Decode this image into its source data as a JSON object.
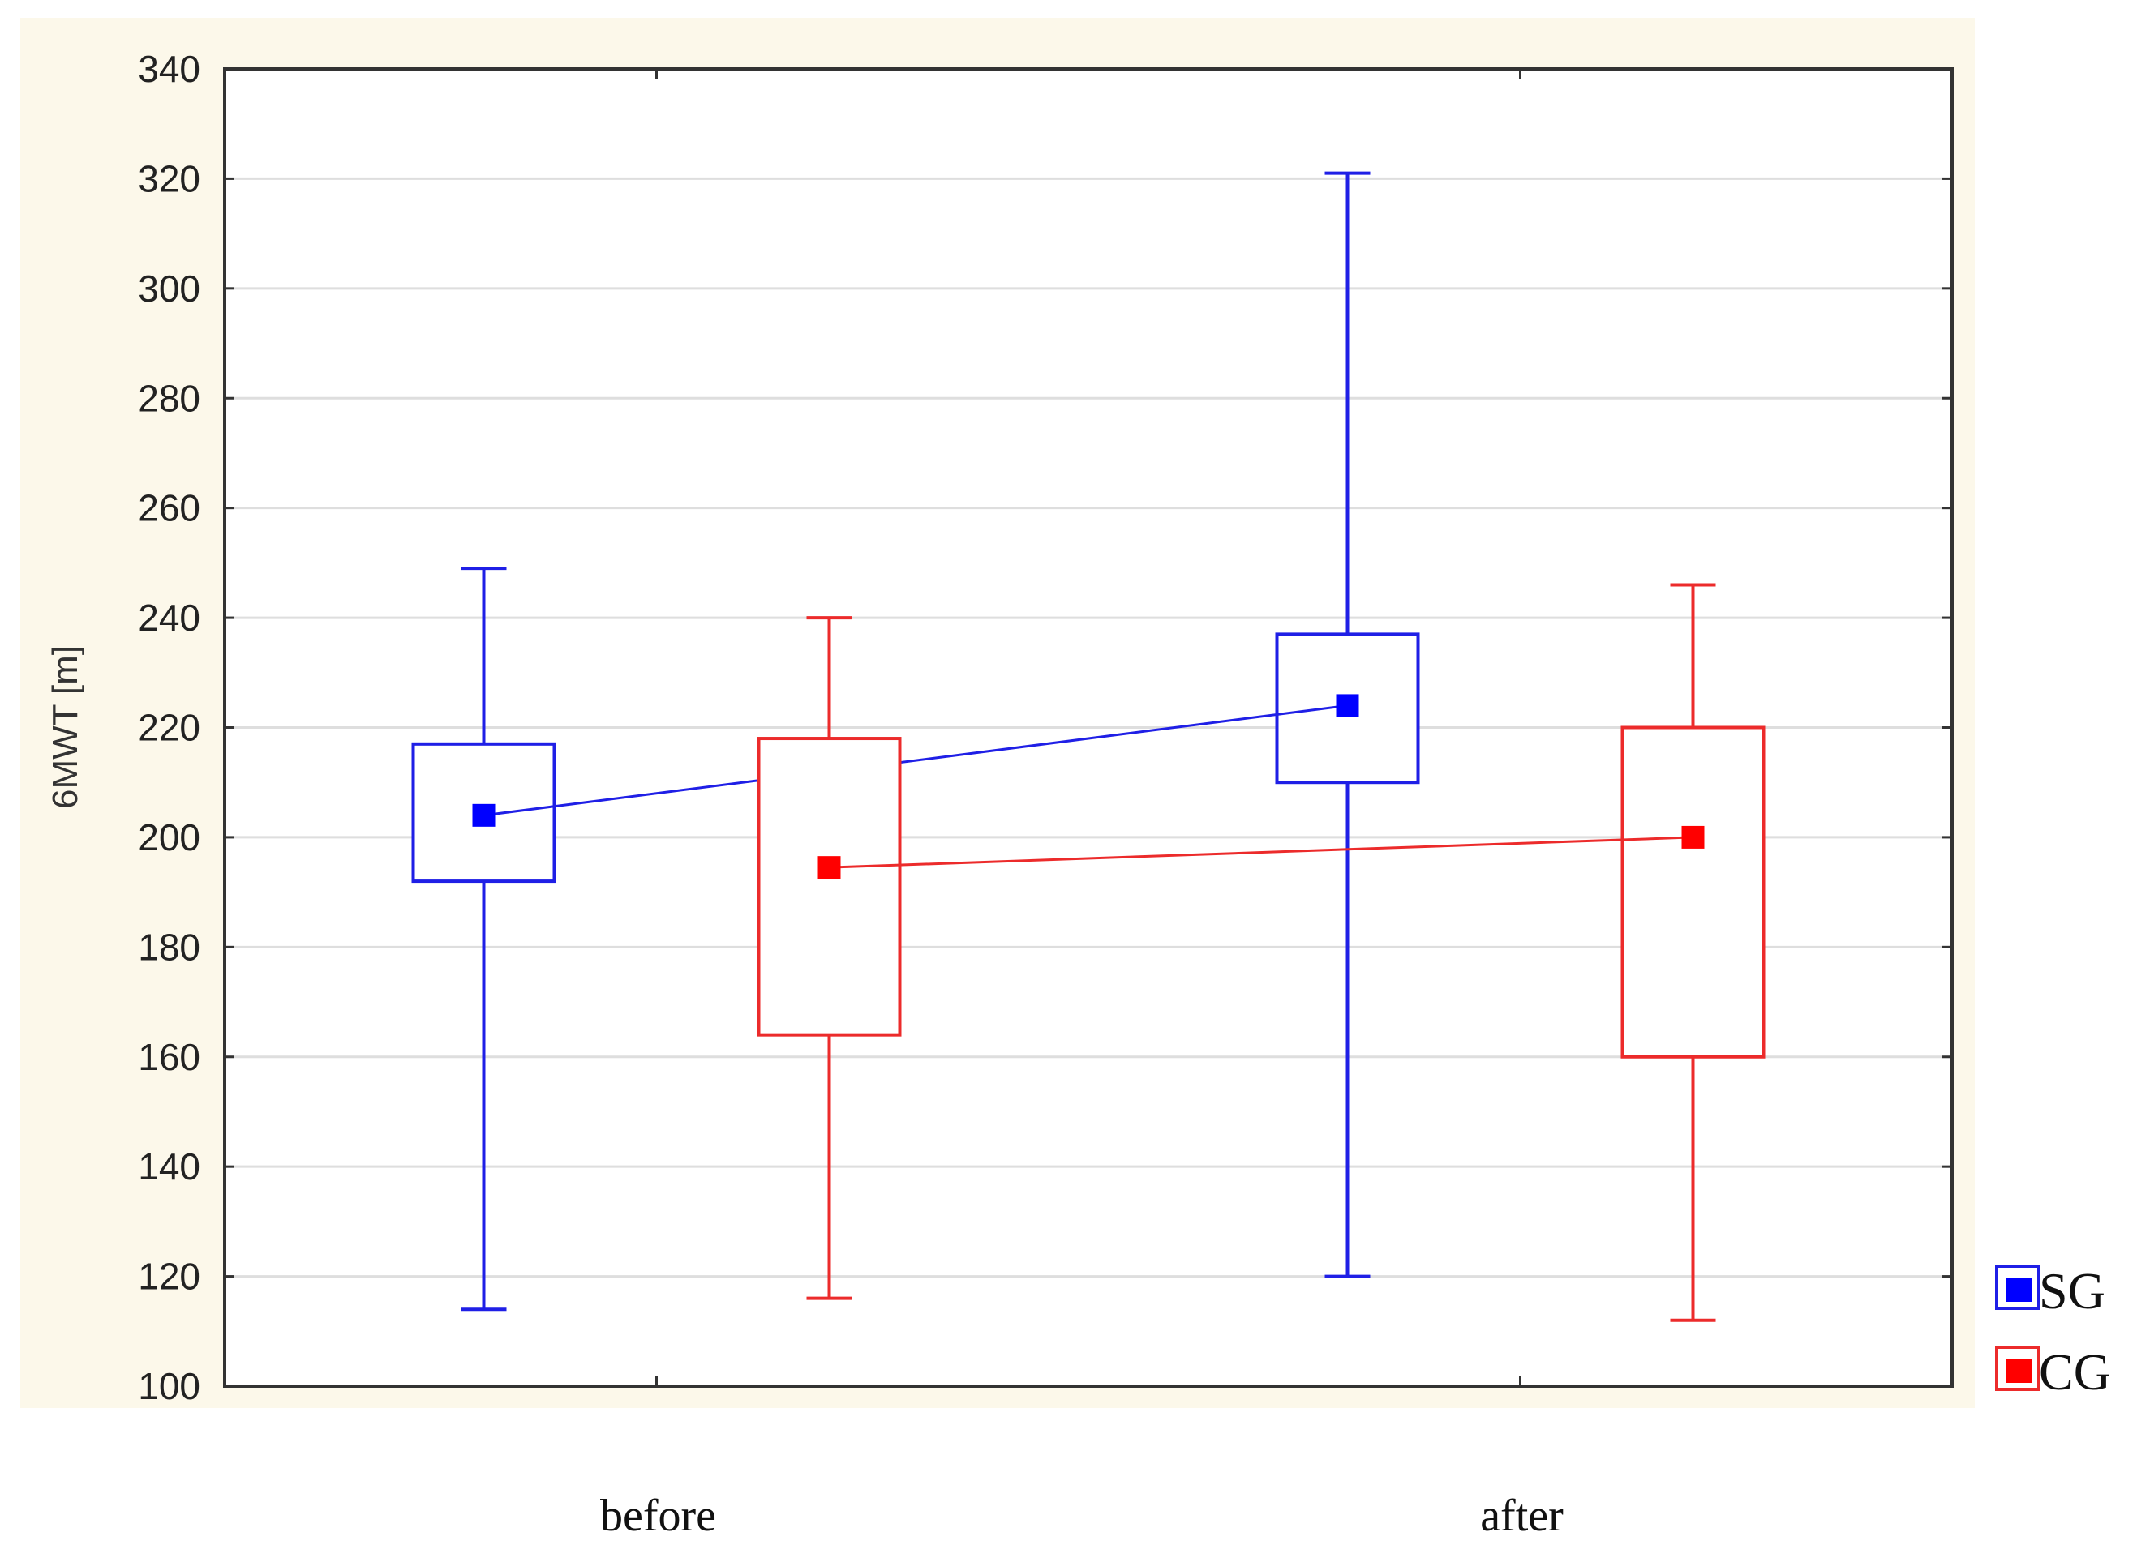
{
  "chart_data": {
    "type": "box",
    "ylabel": "6MWT [m]",
    "xlabel": "",
    "title": "",
    "ylim": [
      100,
      340
    ],
    "yticks": [
      100,
      120,
      140,
      160,
      180,
      200,
      220,
      240,
      260,
      280,
      300,
      320,
      340
    ],
    "categories": [
      "before",
      "after"
    ],
    "grid": true,
    "legend_position": "bottom-right",
    "series": [
      {
        "name": "SG",
        "color": "#1f1fe6",
        "marker": "#0000ff",
        "boxes": [
          {
            "category": "before",
            "min": 114,
            "q1": 192,
            "median": 204,
            "q3": 217,
            "max": 249
          },
          {
            "category": "after",
            "min": 120,
            "q1": 210,
            "median": 224,
            "q3": 237,
            "max": 321
          }
        ]
      },
      {
        "name": "CG",
        "color": "#ec2b2b",
        "marker": "#ff0000",
        "boxes": [
          {
            "category": "before",
            "min": 116,
            "q1": 164,
            "median": 194.5,
            "q3": 218,
            "max": 240
          },
          {
            "category": "after",
            "min": 112,
            "q1": 160,
            "median": 200,
            "q3": 220,
            "max": 246
          }
        ]
      }
    ]
  }
}
